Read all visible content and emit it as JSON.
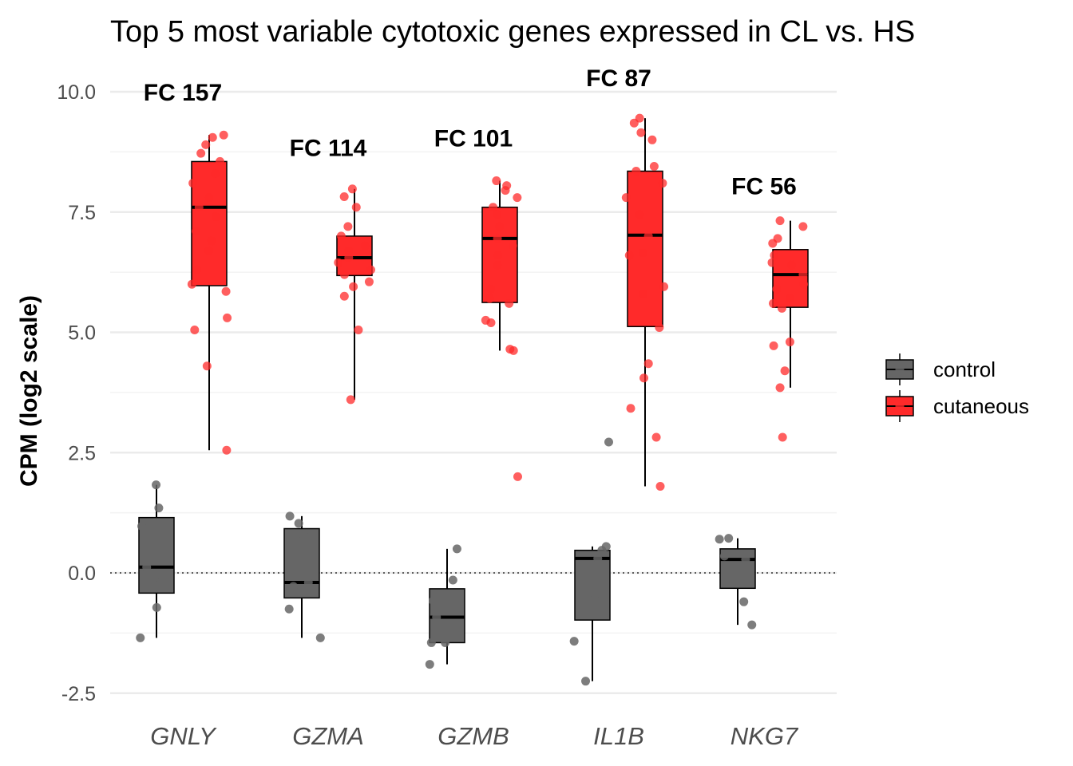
{
  "chart_data": {
    "type": "box",
    "title": "Top 5 most variable cytotoxic genes expressed in CL vs. HS",
    "xlabel": "",
    "ylabel": "CPM (log2 scale)",
    "ylim": [
      -2.9,
      10.3
    ],
    "yticks": [
      -2.5,
      0.0,
      2.5,
      5.0,
      7.5,
      10.0
    ],
    "ytick_labels": [
      "-2.5",
      "0.0",
      "2.5",
      "5.0",
      "7.5",
      "10.0"
    ],
    "grid": true,
    "reference_line": {
      "y": 0,
      "style": "dotted"
    },
    "legend": {
      "position": "right",
      "entries": [
        "control",
        "cutaneous"
      ]
    },
    "colors": {
      "control": "#666666",
      "cutaneous": "#ff2a2a"
    },
    "categories": [
      {
        "gene": "GNLY",
        "annotation": "FC 157",
        "annotation_y": 10.0,
        "control": {
          "min": -1.35,
          "q1": -0.42,
          "median": 0.12,
          "q3": 1.15,
          "max": 1.83,
          "points": [
            1.83,
            1.35,
            0.97,
            0.12,
            -0.1,
            -0.72,
            -1.35
          ]
        },
        "cutaneous": {
          "min": 2.55,
          "q1": 5.97,
          "median": 7.6,
          "q3": 8.55,
          "max": 9.1,
          "points": [
            9.1,
            9.05,
            8.9,
            8.72,
            8.55,
            8.3,
            8.1,
            7.8,
            7.6,
            7.4,
            7.1,
            6.9,
            6.7,
            6.3,
            6.0,
            5.85,
            5.3,
            5.05,
            4.3,
            2.55
          ]
        }
      },
      {
        "gene": "GZMA",
        "annotation": "FC 114",
        "annotation_y": 8.85,
        "control": {
          "min": -1.35,
          "q1": -0.52,
          "median": -0.2,
          "q3": 0.92,
          "max": 1.18,
          "points": [
            1.18,
            1.03,
            0.78,
            -0.2,
            -0.28,
            -0.75,
            -1.35
          ]
        },
        "cutaneous": {
          "min": 3.6,
          "q1": 6.18,
          "median": 6.55,
          "q3": 7.0,
          "max": 7.98,
          "points": [
            7.98,
            7.82,
            7.6,
            7.2,
            7.0,
            6.8,
            6.7,
            6.55,
            6.45,
            6.3,
            6.2,
            6.05,
            5.95,
            5.75,
            5.05,
            3.6
          ]
        }
      },
      {
        "gene": "GZMB",
        "annotation": "FC 101",
        "annotation_y": 9.05,
        "control": {
          "min": -1.9,
          "q1": -1.45,
          "median": -0.92,
          "q3": -0.33,
          "max": 0.5,
          "points": [
            0.5,
            -0.15,
            -0.58,
            -0.92,
            -1.45,
            -1.45,
            -1.9
          ]
        },
        "cutaneous": {
          "min": 4.62,
          "q1": 5.62,
          "median": 6.95,
          "q3": 7.6,
          "max": 8.15,
          "points": [
            8.15,
            8.05,
            7.95,
            7.8,
            7.6,
            7.45,
            7.2,
            6.95,
            6.8,
            6.6,
            6.4,
            5.9,
            5.7,
            5.6,
            5.25,
            5.2,
            4.65,
            4.62,
            2.0
          ]
        }
      },
      {
        "gene": "IL1B",
        "annotation": "FC 87",
        "annotation_y": 10.3,
        "control": {
          "min": -2.25,
          "q1": -0.98,
          "median": 0.3,
          "q3": 0.47,
          "max": 0.55,
          "points": [
            2.72,
            0.55,
            0.47,
            0.3,
            -0.55,
            -1.42,
            -2.25
          ]
        },
        "cutaneous": {
          "min": 1.8,
          "q1": 5.12,
          "median": 7.02,
          "q3": 8.35,
          "max": 9.45,
          "points": [
            9.45,
            9.35,
            9.15,
            9.0,
            8.45,
            8.35,
            8.1,
            7.8,
            7.45,
            7.0,
            6.65,
            6.6,
            5.95,
            5.8,
            5.1,
            4.35,
            4.05,
            3.42,
            2.82,
            1.8
          ]
        }
      },
      {
        "gene": "NKG7",
        "annotation": "FC 56",
        "annotation_y": 8.05,
        "control": {
          "min": -1.08,
          "q1": -0.32,
          "median": 0.28,
          "q3": 0.5,
          "max": 0.72,
          "points": [
            0.72,
            0.7,
            0.35,
            0.28,
            0.0,
            -0.6,
            -1.08
          ]
        },
        "cutaneous": {
          "min": 3.85,
          "q1": 5.52,
          "median": 6.2,
          "q3": 6.72,
          "max": 7.32,
          "points": [
            7.32,
            7.2,
            6.95,
            6.85,
            6.6,
            6.45,
            6.4,
            6.2,
            6.0,
            5.9,
            5.7,
            5.6,
            5.5,
            4.8,
            4.72,
            4.2,
            3.85,
            2.82
          ]
        }
      }
    ]
  }
}
